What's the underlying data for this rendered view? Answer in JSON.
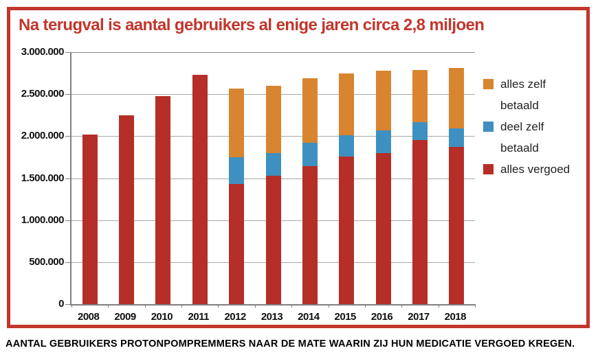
{
  "title": "Na terugval is aantal gebruikers al enige jaren circa 2,8 miljoen",
  "caption": "AANTAL GEBRUIKERS PROTONPOMPREMMERS NAAR DE MATE WAARIN ZIJ HUN MEDICATIE VERGOED KREGEN.",
  "colors": {
    "accent_red": "#c2362c",
    "bar_red": "#b52e27",
    "bar_blue": "#3e90c1",
    "bar_orange": "#d9842f",
    "grid": "#a8a8a8",
    "axis": "#7f7f7f",
    "text": "#111111"
  },
  "chart_data": {
    "type": "bar",
    "stacked": true,
    "title": "Na terugval is aantal gebruikers al enige jaren circa 2,8 miljoen",
    "xlabel": "",
    "ylabel": "",
    "ylim": [
      0,
      3000000
    ],
    "ytick_step": 500000,
    "ytick_labels": [
      "0",
      "500.000",
      "1.000.000",
      "1.500.000",
      "2.000.000",
      "2.500.000",
      "3.000.000"
    ],
    "grid": true,
    "legend_position": "right",
    "categories": [
      "2008",
      "2009",
      "2010",
      "2011",
      "2012",
      "2013",
      "2014",
      "2015",
      "2016",
      "2017",
      "2018"
    ],
    "series": [
      {
        "name": "alles vergoed",
        "color_key": "bar_red",
        "values": [
          2020000,
          2250000,
          2480000,
          2730000,
          1430000,
          1530000,
          1640000,
          1760000,
          1800000,
          1950000,
          1870000
        ]
      },
      {
        "name": "deel zelf betaald",
        "color_key": "bar_blue",
        "values": [
          0,
          0,
          0,
          0,
          320000,
          270000,
          280000,
          250000,
          270000,
          220000,
          220000
        ]
      },
      {
        "name": "alles zelf betaald",
        "color_key": "bar_orange",
        "values": [
          0,
          0,
          0,
          0,
          820000,
          800000,
          770000,
          740000,
          710000,
          620000,
          720000
        ]
      }
    ],
    "legend": [
      {
        "label": "alles zelf betaald",
        "color_key": "bar_orange"
      },
      {
        "label": "deel zelf betaald",
        "color_key": "bar_blue"
      },
      {
        "label": "alles vergoed",
        "color_key": "bar_red"
      }
    ]
  }
}
